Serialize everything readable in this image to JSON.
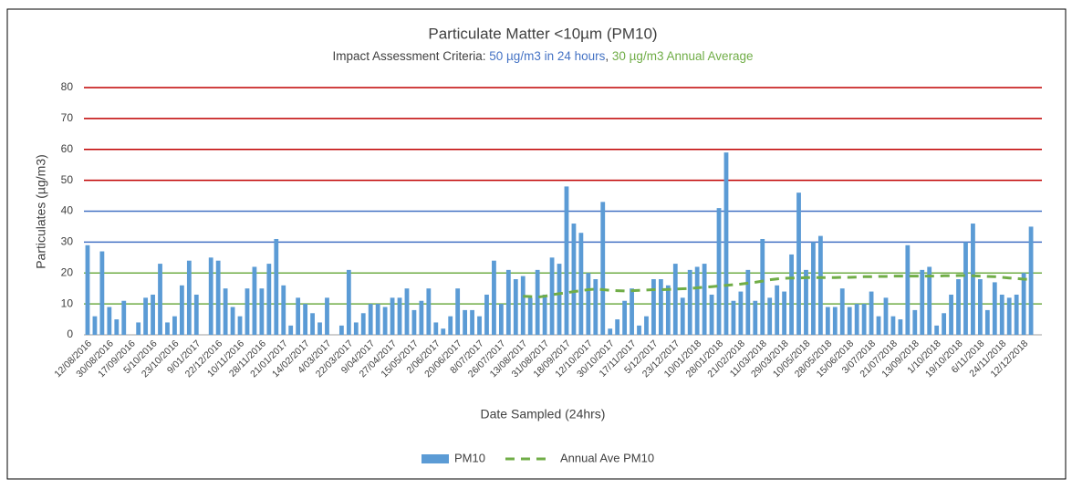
{
  "chart_data": {
    "type": "bar_line",
    "title": "Particulate Matter <10µm (PM10)",
    "subtitle": [
      {
        "text": "Impact Assessment Criteria: ",
        "color": "#404040"
      },
      {
        "text": "50 µg/m3 in 24 hours",
        "color": "#4472c4"
      },
      {
        "text": ", ",
        "color": "#404040"
      },
      {
        "text": "30 µg/m3 Annual Average",
        "color": "#70ad47"
      }
    ],
    "x_label": "Date Sampled (24hrs)",
    "y_label": "Particulates (µg/m3)",
    "categories": [
      "12/08/2016",
      null,
      null,
      "30/08/2016",
      null,
      null,
      "17/09/2016",
      null,
      null,
      "5/10/2016",
      null,
      null,
      "23/10/2016",
      null,
      null,
      "9/01/2017",
      null,
      null,
      "22/12/2016",
      null,
      null,
      "10/11/2016",
      null,
      null,
      "28/11/2016",
      null,
      null,
      "21/01/2017",
      null,
      null,
      "14/02/2017",
      null,
      null,
      "4/03/2017",
      null,
      null,
      "22/03/2017",
      null,
      null,
      "9/04/2017",
      null,
      null,
      "27/04/2017",
      null,
      null,
      "15/05/2017",
      null,
      null,
      "2/06/2017",
      null,
      null,
      "20/06/2017",
      null,
      null,
      "8/07/2017",
      null,
      null,
      "26/07/2017",
      null,
      null,
      "13/08/2017",
      null,
      null,
      "31/08/2017",
      null,
      null,
      "18/09/2017",
      null,
      null,
      "12/10/2017",
      null,
      null,
      "30/10/2017",
      null,
      null,
      "17/11/2017",
      null,
      null,
      "5/12/2017",
      null,
      null,
      "23/12/2017",
      null,
      null,
      "10/01/2018",
      null,
      null,
      "28/01/2018",
      null,
      null,
      "21/02/2018",
      null,
      null,
      "11/03/2018",
      null,
      null,
      "29/03/2018",
      null,
      null,
      "10/05/2018",
      null,
      null,
      "28/05/2018",
      null,
      null,
      "15/06/2018",
      null,
      null,
      "3/07/2018",
      null,
      null,
      "21/07/2018",
      null,
      null,
      "13/09/2018",
      null,
      null,
      "1/10/2018",
      null,
      null,
      "19/10/2018",
      null,
      null,
      "6/11/2018",
      null,
      null,
      "24/11/2018",
      null,
      null,
      "12/12/2018",
      null,
      null
    ],
    "series": [
      {
        "name": "PM10",
        "type": "bar",
        "color": "#5b9bd5",
        "values": [
          29,
          6,
          27,
          9,
          5,
          11,
          null,
          4,
          12,
          13,
          23,
          4,
          6,
          16,
          24,
          13,
          null,
          25,
          24,
          15,
          9,
          6,
          15,
          22,
          15,
          23,
          31,
          16,
          3,
          12,
          10,
          7,
          4,
          12,
          null,
          3,
          21,
          4,
          7,
          10,
          10,
          9,
          12,
          12,
          15,
          8,
          11,
          15,
          4,
          2,
          6,
          15,
          8,
          8,
          6,
          13,
          24,
          10,
          21,
          18,
          19,
          12,
          21,
          13,
          25,
          23,
          48,
          36,
          33,
          20,
          18,
          43,
          2,
          5,
          11,
          15,
          3,
          6,
          18,
          18,
          16,
          23,
          12,
          21,
          22,
          23,
          13,
          41,
          59,
          11,
          14,
          21,
          11,
          31,
          12,
          16,
          14,
          26,
          46,
          21,
          30,
          32,
          9,
          9,
          15,
          9,
          10,
          10,
          14,
          6,
          12,
          6,
          5,
          29,
          8,
          21,
          22,
          3,
          7,
          13,
          18,
          30,
          36,
          18,
          8,
          17,
          13,
          12,
          13,
          20,
          35,
          null
        ]
      },
      {
        "name": "Annual Ave PM10",
        "type": "line",
        "color": "#70ad47",
        "line_style": "dashed",
        "values": [
          null,
          null,
          null,
          null,
          null,
          null,
          null,
          null,
          null,
          null,
          null,
          null,
          null,
          null,
          null,
          null,
          null,
          null,
          null,
          null,
          null,
          null,
          null,
          null,
          null,
          null,
          null,
          null,
          null,
          null,
          null,
          null,
          null,
          null,
          null,
          null,
          null,
          null,
          null,
          null,
          null,
          null,
          null,
          null,
          null,
          null,
          null,
          null,
          null,
          null,
          null,
          null,
          null,
          null,
          null,
          null,
          null,
          null,
          null,
          null,
          12.5,
          12.4,
          12.2,
          12.5,
          13,
          13.3,
          13.6,
          14,
          14.3,
          14.6,
          14.8,
          14.6,
          14.4,
          14.3,
          14.2,
          14.3,
          14.4,
          14.5,
          14.6,
          14.6,
          14.7,
          14.8,
          14.9,
          15,
          15.2,
          15.4,
          15.6,
          15.8,
          16,
          16.2,
          16.4,
          16.7,
          17,
          17.4,
          17.8,
          18.1,
          18.3,
          18.4,
          18.4,
          18.5,
          18.5,
          18.5,
          18.5,
          18.5,
          18.6,
          18.6,
          18.7,
          18.8,
          18.8,
          18.9,
          18.9,
          19,
          19,
          19,
          19,
          19,
          19,
          19,
          19.1,
          19.1,
          19.2,
          19.2,
          19.1,
          19,
          18.9,
          18.8,
          18.6,
          18.4,
          18.2,
          18,
          17.9,
          null
        ]
      }
    ],
    "ylim": [
      0,
      80
    ],
    "yticks": [
      0,
      10,
      20,
      30,
      40,
      50,
      60,
      70,
      80
    ],
    "grid": true,
    "grid_colors": [
      "#bfbfbf",
      "#70ad47",
      "#70ad47",
      "#4472c4",
      "#4472c4",
      "#c00000",
      "#c00000",
      "#c00000",
      "#c00000"
    ],
    "legend": "bottom"
  }
}
